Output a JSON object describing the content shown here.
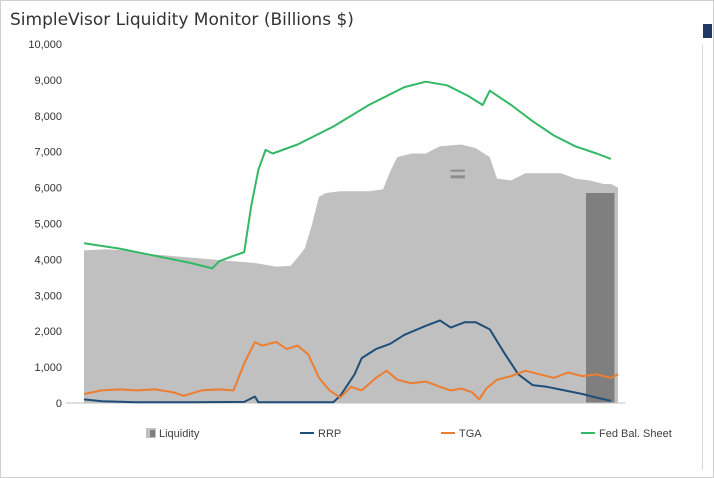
{
  "chart_data": {
    "type": "area",
    "title": "SimpleVisor Liquidity Monitor (Billions $)",
    "xlabel": "",
    "ylabel": "",
    "ylim": [
      0,
      10000
    ],
    "yticks": [
      "0",
      "1,000",
      "2,000",
      "3,000",
      "4,000",
      "5,000",
      "6,000",
      "7,000",
      "8,000",
      "9,000",
      "10,000"
    ],
    "grid": false,
    "legend_position": "bottom",
    "x_index_range": [
      0,
      150
    ],
    "series": [
      {
        "name": "Liquidity",
        "kind": "area",
        "color": "#c0c0c0",
        "points": [
          [
            0,
            4250
          ],
          [
            6,
            4280
          ],
          [
            12,
            4250
          ],
          [
            18,
            4150
          ],
          [
            24,
            4100
          ],
          [
            30,
            4050
          ],
          [
            36,
            4000
          ],
          [
            42,
            3950
          ],
          [
            48,
            3900
          ],
          [
            54,
            3800
          ],
          [
            58,
            3820
          ],
          [
            60,
            4050
          ],
          [
            62,
            4300
          ],
          [
            64,
            4950
          ],
          [
            66,
            5750
          ],
          [
            68,
            5850
          ],
          [
            72,
            5900
          ],
          [
            76,
            5900
          ],
          [
            80,
            5900
          ],
          [
            84,
            5950
          ],
          [
            86,
            6450
          ],
          [
            88,
            6850
          ],
          [
            92,
            6950
          ],
          [
            96,
            6950
          ],
          [
            100,
            7150
          ],
          [
            106,
            7200
          ],
          [
            110,
            7100
          ],
          [
            114,
            6850
          ],
          [
            116,
            6250
          ],
          [
            120,
            6200
          ],
          [
            124,
            6400
          ],
          [
            128,
            6400
          ],
          [
            134,
            6400
          ],
          [
            138,
            6250
          ],
          [
            142,
            6200
          ],
          [
            146,
            6100
          ],
          [
            148,
            6100
          ],
          [
            150,
            6000
          ]
        ]
      },
      {
        "name": "Liquidity (latest)",
        "kind": "area-highlight",
        "color": "#7f7f7f",
        "points": [
          [
            141,
            5850
          ],
          [
            149,
            5850
          ]
        ]
      },
      {
        "name": "RRP",
        "kind": "line",
        "color": "#1f4e79",
        "points": [
          [
            0,
            100
          ],
          [
            5,
            50
          ],
          [
            15,
            20
          ],
          [
            30,
            20
          ],
          [
            45,
            30
          ],
          [
            48,
            180
          ],
          [
            49,
            20
          ],
          [
            55,
            20
          ],
          [
            70,
            20
          ],
          [
            72,
            200
          ],
          [
            76,
            800
          ],
          [
            78,
            1250
          ],
          [
            82,
            1500
          ],
          [
            86,
            1650
          ],
          [
            90,
            1900
          ],
          [
            96,
            2150
          ],
          [
            100,
            2300
          ],
          [
            103,
            2100
          ],
          [
            107,
            2250
          ],
          [
            110,
            2250
          ],
          [
            114,
            2050
          ],
          [
            118,
            1400
          ],
          [
            122,
            800
          ],
          [
            126,
            500
          ],
          [
            130,
            450
          ],
          [
            135,
            350
          ],
          [
            140,
            250
          ],
          [
            144,
            150
          ],
          [
            148,
            60
          ]
        ]
      },
      {
        "name": "TGA",
        "kind": "line",
        "color": "#ed7d31",
        "points": [
          [
            0,
            250
          ],
          [
            5,
            350
          ],
          [
            10,
            380
          ],
          [
            15,
            350
          ],
          [
            20,
            380
          ],
          [
            25,
            300
          ],
          [
            28,
            200
          ],
          [
            33,
            350
          ],
          [
            38,
            380
          ],
          [
            42,
            350
          ],
          [
            45,
            1100
          ],
          [
            48,
            1700
          ],
          [
            50,
            1600
          ],
          [
            54,
            1700
          ],
          [
            57,
            1500
          ],
          [
            60,
            1600
          ],
          [
            63,
            1350
          ],
          [
            66,
            700
          ],
          [
            69,
            350
          ],
          [
            72,
            150
          ],
          [
            75,
            450
          ],
          [
            78,
            350
          ],
          [
            82,
            700
          ],
          [
            85,
            900
          ],
          [
            88,
            650
          ],
          [
            92,
            550
          ],
          [
            96,
            600
          ],
          [
            100,
            450
          ],
          [
            103,
            350
          ],
          [
            106,
            400
          ],
          [
            109,
            300
          ],
          [
            111,
            100
          ],
          [
            113,
            400
          ],
          [
            116,
            650
          ],
          [
            120,
            750
          ],
          [
            124,
            900
          ],
          [
            128,
            800
          ],
          [
            132,
            700
          ],
          [
            136,
            850
          ],
          [
            140,
            750
          ],
          [
            144,
            800
          ],
          [
            148,
            700
          ],
          [
            150,
            800
          ]
        ]
      },
      {
        "name": "Fed Bal. Sheet",
        "kind": "line",
        "color": "#33b866",
        "points": [
          [
            0,
            4450
          ],
          [
            10,
            4300
          ],
          [
            20,
            4100
          ],
          [
            30,
            3900
          ],
          [
            36,
            3750
          ],
          [
            38,
            3950
          ],
          [
            42,
            4100
          ],
          [
            45,
            4200
          ],
          [
            47,
            5500
          ],
          [
            49,
            6500
          ],
          [
            51,
            7050
          ],
          [
            53,
            6950
          ],
          [
            60,
            7200
          ],
          [
            70,
            7700
          ],
          [
            80,
            8300
          ],
          [
            90,
            8800
          ],
          [
            96,
            8950
          ],
          [
            102,
            8850
          ],
          [
            108,
            8550
          ],
          [
            112,
            8300
          ],
          [
            114,
            8700
          ],
          [
            120,
            8300
          ],
          [
            126,
            7850
          ],
          [
            132,
            7450
          ],
          [
            138,
            7150
          ],
          [
            144,
            6950
          ],
          [
            148,
            6800
          ]
        ]
      }
    ]
  }
}
